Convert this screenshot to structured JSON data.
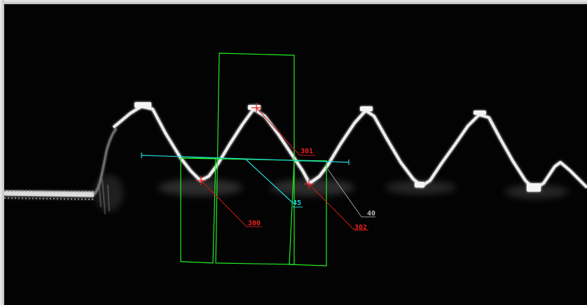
{
  "viewer": {
    "image": "ultrasound-thread-profile-scan",
    "colors": {
      "background": "#030303",
      "profile": "#e8e8e8",
      "roi_box": "#22ee22",
      "red_annotation": "#ee2020",
      "cyan_annotation": "#22d8e0",
      "gray_annotation": "#b8b8b8"
    }
  },
  "annotations": {
    "label_300": "300",
    "label_301": "301",
    "label_302": "302",
    "label_45": "45",
    "label_40": "40"
  }
}
